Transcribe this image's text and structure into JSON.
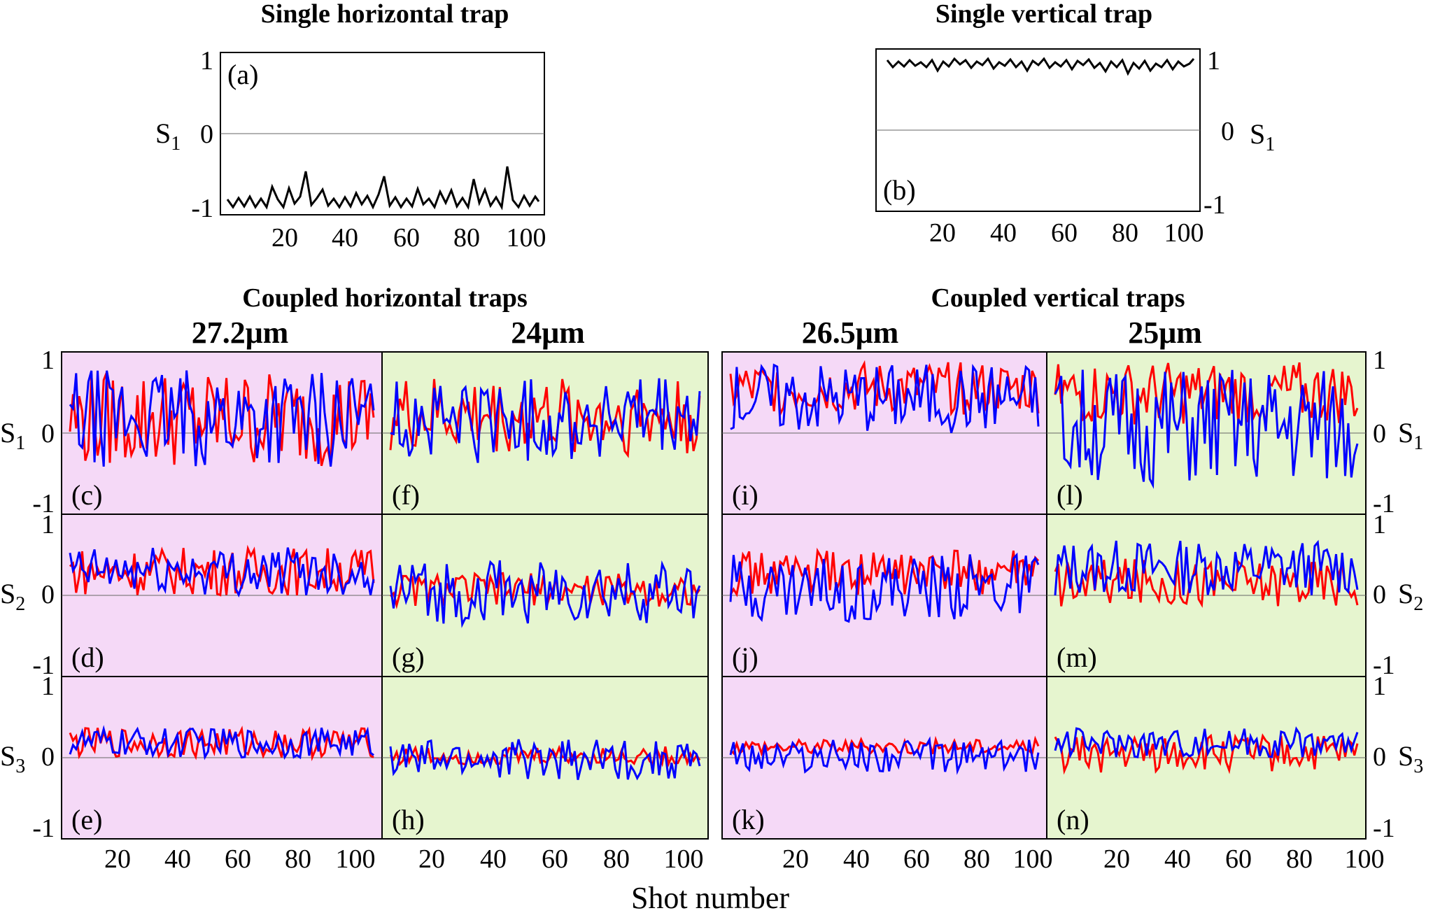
{
  "figure": {
    "x_axis_label": "Shot number",
    "group_titles": {
      "single_horizontal": "Single horizontal trap",
      "single_vertical": "Single vertical trap",
      "coupled_horizontal": "Coupled horizontal traps",
      "coupled_vertical": "Coupled vertical traps"
    },
    "column_titles": [
      "27.2μm",
      "24μm",
      "26.5μm",
      "25μm"
    ],
    "row_labels": [
      "S",
      "S",
      "S"
    ],
    "row_label_subs": [
      "1",
      "2",
      "3"
    ],
    "y_ticks": [
      "1",
      "0",
      "-1"
    ],
    "x_ticks": [
      "20",
      "40",
      "60",
      "80",
      "100"
    ],
    "panel_labels": [
      "(a)",
      "(b)",
      "(c)",
      "(d)",
      "(e)",
      "(f)",
      "(g)",
      "(h)",
      "(i)",
      "(j)",
      "(k)",
      "(l)",
      "(m)",
      "(n)"
    ],
    "colors": {
      "red_series": "#ff0000",
      "blue_series": "#0000ff",
      "single_trace": "#000000",
      "magenta_background": "#f5d9f7",
      "green_background": "#e6f5cf"
    }
  },
  "chart_data": [
    {
      "panel": "(a)",
      "type": "line",
      "title": "Single horizontal trap",
      "ylabel": "S1",
      "xlim": [
        0,
        102
      ],
      "ylim": [
        -1,
        1
      ],
      "series": [
        {
          "color": "#000000",
          "x": [
            1,
            100
          ],
          "y": [
            -0.95,
            -0.95
          ],
          "approx_mean": -0.9,
          "approx_range": [
            -1.0,
            -0.55
          ]
        }
      ]
    },
    {
      "panel": "(b)",
      "type": "line",
      "title": "Single vertical trap",
      "ylabel": "S1",
      "xlim": [
        0,
        102
      ],
      "ylim": [
        -1,
        1
      ],
      "series": [
        {
          "color": "#000000",
          "approx_mean": 0.92,
          "approx_range": [
            0.82,
            1.0
          ]
        }
      ]
    },
    {
      "panel": "(c)",
      "type": "line",
      "title": "27.2μm",
      "ylabel": "S1",
      "ylim": [
        -1,
        1
      ],
      "background": "#f5d9f7",
      "series": [
        {
          "color": "#ff0000",
          "approx_range": [
            -0.45,
            0.85
          ]
        },
        {
          "color": "#0000ff",
          "approx_range": [
            -0.45,
            0.85
          ]
        }
      ]
    },
    {
      "panel": "(d)",
      "type": "line",
      "ylabel": "S2",
      "ylim": [
        -1,
        1
      ],
      "background": "#f5d9f7",
      "series": [
        {
          "color": "#ff0000",
          "approx_range": [
            0.0,
            0.65
          ]
        },
        {
          "color": "#0000ff",
          "approx_range": [
            0.0,
            0.65
          ]
        }
      ]
    },
    {
      "panel": "(e)",
      "type": "line",
      "ylabel": "S3",
      "ylim": [
        -1,
        1
      ],
      "background": "#f5d9f7",
      "series": [
        {
          "color": "#ff0000",
          "approx_range": [
            0.0,
            0.4
          ]
        },
        {
          "color": "#0000ff",
          "approx_range": [
            0.0,
            0.4
          ]
        }
      ]
    },
    {
      "panel": "(f)",
      "type": "line",
      "title": "24μm",
      "ylabel": "S1",
      "ylim": [
        -1,
        1
      ],
      "background": "#e6f5cf",
      "series": [
        {
          "color": "#ff0000",
          "approx_range": [
            -0.3,
            0.75
          ]
        },
        {
          "color": "#0000ff",
          "approx_range": [
            -0.4,
            0.75
          ]
        }
      ]
    },
    {
      "panel": "(g)",
      "type": "line",
      "ylabel": "S2",
      "ylim": [
        -1,
        1
      ],
      "background": "#e6f5cf",
      "series": [
        {
          "color": "#ff0000",
          "approx_range": [
            -0.15,
            0.3
          ]
        },
        {
          "color": "#0000ff",
          "approx_range": [
            -0.4,
            0.5
          ]
        }
      ]
    },
    {
      "panel": "(h)",
      "type": "line",
      "ylabel": "S3",
      "ylim": [
        -1,
        1
      ],
      "background": "#e6f5cf",
      "series": [
        {
          "color": "#ff0000",
          "approx_range": [
            -0.1,
            0.15
          ]
        },
        {
          "color": "#0000ff",
          "approx_range": [
            -0.3,
            0.25
          ]
        }
      ]
    },
    {
      "panel": "(i)",
      "type": "line",
      "title": "26.5μm",
      "ylabel": "S1",
      "ylim": [
        -1,
        1
      ],
      "background": "#f5d9f7",
      "series": [
        {
          "color": "#ff0000",
          "approx_range": [
            0.25,
            0.95
          ]
        },
        {
          "color": "#0000ff",
          "approx_range": [
            0.0,
            0.95
          ]
        }
      ]
    },
    {
      "panel": "(j)",
      "type": "line",
      "ylabel": "S2",
      "ylim": [
        -1,
        1
      ],
      "background": "#f5d9f7",
      "series": [
        {
          "color": "#ff0000",
          "approx_range": [
            0.0,
            0.6
          ]
        },
        {
          "color": "#0000ff",
          "approx_range": [
            -0.35,
            0.55
          ]
        }
      ]
    },
    {
      "panel": "(k)",
      "type": "line",
      "ylabel": "S3",
      "ylim": [
        -1,
        1
      ],
      "background": "#f5d9f7",
      "series": [
        {
          "color": "#ff0000",
          "approx_range": [
            0.05,
            0.25
          ]
        },
        {
          "color": "#0000ff",
          "approx_range": [
            -0.2,
            0.25
          ]
        }
      ]
    },
    {
      "panel": "(l)",
      "type": "line",
      "title": "25μm",
      "ylabel": "S1",
      "ylim": [
        -1,
        1
      ],
      "background": "#e6f5cf",
      "series": [
        {
          "color": "#ff0000",
          "approx_range": [
            0.1,
            0.95
          ]
        },
        {
          "color": "#0000ff",
          "approx_range": [
            -0.7,
            0.9
          ]
        }
      ]
    },
    {
      "panel": "(m)",
      "type": "line",
      "ylabel": "S2",
      "ylim": [
        -1,
        1
      ],
      "background": "#e6f5cf",
      "series": [
        {
          "color": "#ff0000",
          "approx_range": [
            -0.15,
            0.5
          ]
        },
        {
          "color": "#0000ff",
          "approx_range": [
            0.0,
            0.75
          ]
        }
      ]
    },
    {
      "panel": "(n)",
      "type": "line",
      "ylabel": "S3",
      "ylim": [
        -1,
        1
      ],
      "background": "#e6f5cf",
      "series": [
        {
          "color": "#ff0000",
          "approx_range": [
            -0.2,
            0.3
          ]
        },
        {
          "color": "#0000ff",
          "approx_range": [
            0.0,
            0.4
          ]
        }
      ]
    }
  ]
}
